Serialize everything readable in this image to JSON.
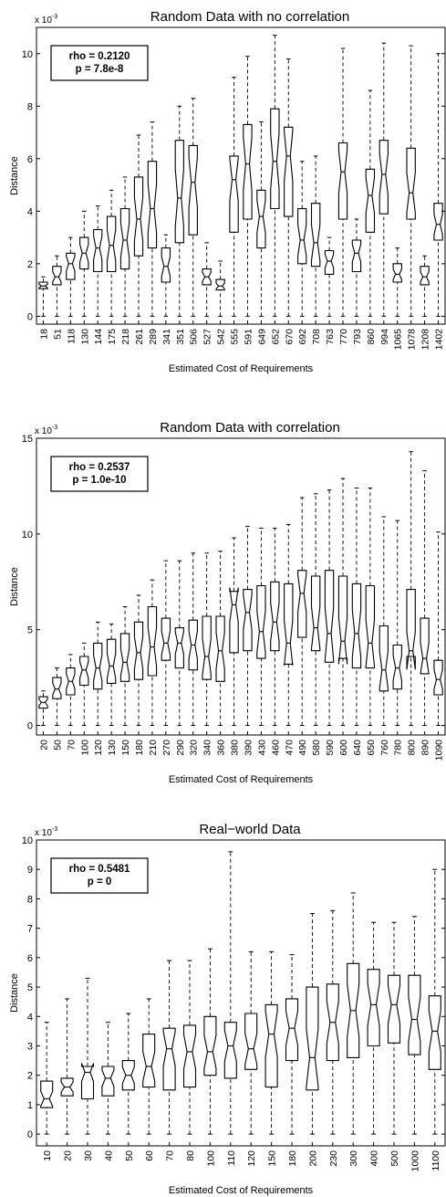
{
  "chart_data": [
    {
      "type": "box",
      "title": "Random Data with no correlation",
      "xlabel": "Estimated Cost of Requirements",
      "ylabel": "Distance",
      "exponent_label": "x 10",
      "exponent": "-3",
      "ylim": [
        -0.3,
        11
      ],
      "yticks": [
        0,
        2,
        4,
        6,
        8,
        10
      ],
      "annotation": [
        "rho = 0.2120",
        "p = 7.8e-8"
      ],
      "categories": [
        "18",
        "51",
        "118",
        "130",
        "144",
        "175",
        "218",
        "261",
        "289",
        "341",
        "351",
        "506",
        "527",
        "542",
        "555",
        "591",
        "649",
        "652",
        "670",
        "692",
        "708",
        "763",
        "770",
        "793",
        "860",
        "994",
        "1065",
        "1078",
        "1208",
        "1402"
      ],
      "boxes": [
        {
          "whislo": 0,
          "q1": 1.05,
          "med": 1.15,
          "q3": 1.3,
          "whishi": 1.5
        },
        {
          "whislo": 0,
          "q1": 1.2,
          "med": 1.5,
          "q3": 1.9,
          "whishi": 2.3
        },
        {
          "whislo": 0,
          "q1": 1.4,
          "med": 2.0,
          "q3": 2.4,
          "whishi": 3.0
        },
        {
          "whislo": 0,
          "q1": 1.8,
          "med": 2.4,
          "q3": 3.0,
          "whishi": 4.0
        },
        {
          "whislo": 0,
          "q1": 1.7,
          "med": 2.6,
          "q3": 3.3,
          "whishi": 4.2
        },
        {
          "whislo": 0,
          "q1": 1.7,
          "med": 2.7,
          "q3": 3.8,
          "whishi": 4.8
        },
        {
          "whislo": 0,
          "q1": 1.8,
          "med": 2.9,
          "q3": 4.1,
          "whishi": 5.3
        },
        {
          "whislo": 0,
          "q1": 2.3,
          "med": 3.7,
          "q3": 5.3,
          "whishi": 6.9
        },
        {
          "whislo": 0,
          "q1": 2.6,
          "med": 4.1,
          "q3": 5.9,
          "whishi": 7.4
        },
        {
          "whislo": 0,
          "q1": 1.3,
          "med": 1.9,
          "q3": 2.6,
          "whishi": 3.1
        },
        {
          "whislo": 0,
          "q1": 2.8,
          "med": 4.5,
          "q3": 6.7,
          "whishi": 8.0
        },
        {
          "whislo": 0,
          "q1": 3.1,
          "med": 5.1,
          "q3": 6.5,
          "whishi": 8.3
        },
        {
          "whislo": 0,
          "q1": 1.2,
          "med": 1.5,
          "q3": 1.8,
          "whishi": 2.8
        },
        {
          "whislo": 0,
          "q1": 1.0,
          "med": 1.15,
          "q3": 1.4,
          "whishi": 2.1
        },
        {
          "whislo": 0,
          "q1": 3.2,
          "med": 5.2,
          "q3": 6.1,
          "whishi": 9.1
        },
        {
          "whislo": 0,
          "q1": 3.7,
          "med": 5.8,
          "q3": 7.3,
          "whishi": 9.9
        },
        {
          "whislo": 0,
          "q1": 2.6,
          "med": 3.8,
          "q3": 4.8,
          "whishi": 7.4
        },
        {
          "whislo": 0,
          "q1": 4.1,
          "med": 5.9,
          "q3": 7.9,
          "whishi": 10.7
        },
        {
          "whislo": 0,
          "q1": 3.8,
          "med": 6.1,
          "q3": 7.2,
          "whishi": 9.8
        },
        {
          "whislo": 0,
          "q1": 2.0,
          "med": 2.9,
          "q3": 4.1,
          "whishi": 5.9
        },
        {
          "whislo": 0,
          "q1": 1.9,
          "med": 2.8,
          "q3": 4.3,
          "whishi": 6.1
        },
        {
          "whislo": 0,
          "q1": 1.6,
          "med": 2.1,
          "q3": 2.5,
          "whishi": 3.0
        },
        {
          "whislo": 0,
          "q1": 3.7,
          "med": 5.5,
          "q3": 6.6,
          "whishi": 10.2
        },
        {
          "whislo": 0,
          "q1": 1.7,
          "med": 2.4,
          "q3": 2.9,
          "whishi": 3.7
        },
        {
          "whislo": 0,
          "q1": 3.2,
          "med": 4.6,
          "q3": 5.6,
          "whishi": 8.6
        },
        {
          "whislo": 0,
          "q1": 3.9,
          "med": 5.4,
          "q3": 6.7,
          "whishi": 10.4
        },
        {
          "whislo": 0,
          "q1": 1.3,
          "med": 1.6,
          "q3": 2.0,
          "whishi": 2.6
        },
        {
          "whislo": 0,
          "q1": 3.7,
          "med": 4.7,
          "q3": 6.4,
          "whishi": 10.3
        },
        {
          "whislo": 0,
          "q1": 1.2,
          "med": 1.5,
          "q3": 1.9,
          "whishi": 2.3
        },
        {
          "whislo": 0,
          "q1": 2.9,
          "med": 3.5,
          "q3": 4.3,
          "whishi": 10.0
        }
      ]
    },
    {
      "type": "box",
      "title": "Random Data with correlation",
      "xlabel": "Estimated Cost of Requirements",
      "ylabel": "Distance",
      "exponent_label": "x 10",
      "exponent": "-3",
      "ylim": [
        -0.5,
        15
      ],
      "yticks": [
        0,
        5,
        10,
        15
      ],
      "annotation": [
        "rho = 0.2537",
        "p = 1.0e-10"
      ],
      "categories": [
        "20",
        "50",
        "70",
        "100",
        "120",
        "130",
        "150",
        "180",
        "210",
        "270",
        "290",
        "320",
        "340",
        "360",
        "380",
        "390",
        "430",
        "460",
        "470",
        "490",
        "580",
        "590",
        "600",
        "640",
        "650",
        "760",
        "780",
        "800",
        "890",
        "1090"
      ],
      "boxes": [
        {
          "whislo": 0,
          "q1": 0.9,
          "med": 1.2,
          "q3": 1.5,
          "whishi": 1.8
        },
        {
          "whislo": 0,
          "q1": 1.4,
          "med": 1.9,
          "q3": 2.5,
          "whishi": 3.0
        },
        {
          "whislo": 0,
          "q1": 1.6,
          "med": 2.3,
          "q3": 3.0,
          "whishi": 3.7
        },
        {
          "whislo": 0,
          "q1": 2.1,
          "med": 2.9,
          "q3": 3.6,
          "whishi": 4.3
        },
        {
          "whislo": 0,
          "q1": 1.9,
          "med": 3.0,
          "q3": 4.3,
          "whishi": 5.4
        },
        {
          "whislo": 0,
          "q1": 2.2,
          "med": 3.1,
          "q3": 4.5,
          "whishi": 5.3
        },
        {
          "whislo": 0,
          "q1": 2.3,
          "med": 3.3,
          "q3": 4.8,
          "whishi": 6.2
        },
        {
          "whislo": 0,
          "q1": 2.4,
          "med": 3.8,
          "q3": 5.4,
          "whishi": 6.8
        },
        {
          "whislo": 0,
          "q1": 2.6,
          "med": 4.1,
          "q3": 6.2,
          "whishi": 7.6
        },
        {
          "whislo": 0,
          "q1": 3.4,
          "med": 4.3,
          "q3": 5.6,
          "whishi": 8.6
        },
        {
          "whislo": 0,
          "q1": 3.0,
          "med": 4.3,
          "q3": 5.1,
          "whishi": 8.6
        },
        {
          "whislo": 0,
          "q1": 2.9,
          "med": 4.2,
          "q3": 5.5,
          "whishi": 9.0
        },
        {
          "whislo": 0,
          "q1": 2.4,
          "med": 3.6,
          "q3": 5.7,
          "whishi": 9.0
        },
        {
          "whislo": 0,
          "q1": 2.3,
          "med": 3.9,
          "q3": 5.7,
          "whishi": 9.1
        },
        {
          "whislo": 0,
          "q1": 3.8,
          "med": 6.3,
          "q3": 7.0,
          "whishi": 9.8
        },
        {
          "whislo": 0,
          "q1": 3.9,
          "med": 5.9,
          "q3": 7.1,
          "whishi": 10.4
        },
        {
          "whislo": 0,
          "q1": 3.5,
          "med": 4.9,
          "q3": 7.3,
          "whishi": 10.3
        },
        {
          "whislo": 0,
          "q1": 3.9,
          "med": 5.4,
          "q3": 7.5,
          "whishi": 10.3
        },
        {
          "whislo": 0,
          "q1": 3.2,
          "med": 4.3,
          "q3": 7.4,
          "whishi": 10.5
        },
        {
          "whislo": 0,
          "q1": 4.6,
          "med": 6.9,
          "q3": 8.1,
          "whishi": 11.9
        },
        {
          "whislo": 0,
          "q1": 3.9,
          "med": 5.1,
          "q3": 7.8,
          "whishi": 12.1
        },
        {
          "whislo": 0,
          "q1": 3.3,
          "med": 4.8,
          "q3": 8.1,
          "whishi": 12.3
        },
        {
          "whislo": 0,
          "q1": 3.5,
          "med": 4.4,
          "q3": 7.8,
          "whishi": 12.9
        },
        {
          "whislo": 0,
          "q1": 3.0,
          "med": 4.8,
          "q3": 7.4,
          "whishi": 12.4
        },
        {
          "whislo": 0,
          "q1": 3.0,
          "med": 4.3,
          "q3": 7.3,
          "whishi": 12.4
        },
        {
          "whislo": 0,
          "q1": 1.8,
          "med": 2.9,
          "q3": 5.2,
          "whishi": 10.9
        },
        {
          "whislo": 0,
          "q1": 1.9,
          "med": 3.0,
          "q3": 4.2,
          "whishi": 10.7
        },
        {
          "whislo": 0,
          "q1": 3.6,
          "med": 3.9,
          "q3": 7.1,
          "whishi": 14.3
        },
        {
          "whislo": 0,
          "q1": 2.7,
          "med": 3.5,
          "q3": 5.6,
          "whishi": 13.3
        },
        {
          "whislo": 0,
          "q1": 1.6,
          "med": 2.4,
          "q3": 3.4,
          "whishi": 10.1
        }
      ]
    },
    {
      "type": "box",
      "title": "Real−world Data",
      "xlabel": "Estimated Cost of Requirements",
      "ylabel": "Distance",
      "exponent_label": "x 10",
      "exponent": "-3",
      "ylim": [
        -0.4,
        10
      ],
      "yticks": [
        0,
        1,
        2,
        3,
        4,
        5,
        6,
        7,
        8,
        9,
        10
      ],
      "annotation": [
        "rho = 0.5481",
        "p = 0"
      ],
      "categories": [
        "10",
        "20",
        "30",
        "40",
        "50",
        "60",
        "70",
        "80",
        "100",
        "110",
        "120",
        "150",
        "180",
        "200",
        "230",
        "300",
        "400",
        "500",
        "1000",
        "1100"
      ],
      "boxes": [
        {
          "whislo": 0,
          "q1": 0.9,
          "med": 1.2,
          "q3": 1.8,
          "whishi": 3.8
        },
        {
          "whislo": 0,
          "q1": 1.3,
          "med": 1.6,
          "q3": 1.9,
          "whishi": 4.6
        },
        {
          "whislo": 0,
          "q1": 1.2,
          "med": 2.1,
          "q3": 2.3,
          "whishi": 5.3
        },
        {
          "whislo": 0,
          "q1": 1.3,
          "med": 1.9,
          "q3": 2.3,
          "whishi": 3.8
        },
        {
          "whislo": 0,
          "q1": 1.5,
          "med": 2.0,
          "q3": 2.5,
          "whishi": 4.1
        },
        {
          "whislo": 0,
          "q1": 1.6,
          "med": 2.3,
          "q3": 3.4,
          "whishi": 4.6
        },
        {
          "whislo": 0,
          "q1": 1.5,
          "med": 2.9,
          "q3": 3.6,
          "whishi": 5.9
        },
        {
          "whislo": 0,
          "q1": 1.6,
          "med": 2.8,
          "q3": 3.7,
          "whishi": 5.9
        },
        {
          "whislo": 0,
          "q1": 2.0,
          "med": 2.8,
          "q3": 4.0,
          "whishi": 6.3
        },
        {
          "whislo": 0,
          "q1": 1.9,
          "med": 3.0,
          "q3": 3.8,
          "whishi": 9.6
        },
        {
          "whislo": 0,
          "q1": 2.2,
          "med": 2.9,
          "q3": 4.1,
          "whishi": 6.2
        },
        {
          "whislo": 0,
          "q1": 1.6,
          "med": 3.4,
          "q3": 4.4,
          "whishi": 6.2
        },
        {
          "whislo": 0,
          "q1": 2.5,
          "med": 3.6,
          "q3": 4.6,
          "whishi": 6.1
        },
        {
          "whislo": 0,
          "q1": 1.5,
          "med": 2.6,
          "q3": 5.0,
          "whishi": 7.5
        },
        {
          "whislo": 0,
          "q1": 2.5,
          "med": 3.8,
          "q3": 5.1,
          "whishi": 7.6
        },
        {
          "whislo": 0,
          "q1": 2.6,
          "med": 4.2,
          "q3": 5.8,
          "whishi": 8.2
        },
        {
          "whislo": 0,
          "q1": 3.0,
          "med": 4.4,
          "q3": 5.6,
          "whishi": 7.2
        },
        {
          "whislo": 0,
          "q1": 3.1,
          "med": 4.4,
          "q3": 5.4,
          "whishi": 7.2
        },
        {
          "whislo": 0,
          "q1": 2.7,
          "med": 3.9,
          "q3": 5.4,
          "whishi": 7.4
        },
        {
          "whislo": 0,
          "q1": 2.2,
          "med": 3.5,
          "q3": 4.7,
          "whishi": 9.0
        }
      ]
    }
  ]
}
